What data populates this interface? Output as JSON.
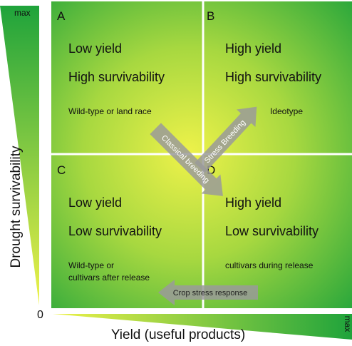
{
  "axes": {
    "y_label": "Drought survivability",
    "y_max": "max",
    "origin": "0",
    "x_label": "Yield (useful products)",
    "x_max": "max"
  },
  "quadrants": [
    {
      "letter": "A",
      "yield": "Low yield",
      "survivability": "High survivability",
      "lines": [
        "Wild-type or land race"
      ]
    },
    {
      "letter": "B",
      "yield": "High yield",
      "survivability": "High survivability",
      "lines": [
        "Ideotype"
      ]
    },
    {
      "letter": "C",
      "yield": "Low yield",
      "survivability": "Low survivability",
      "lines": [
        "Wild-type or",
        "cultivars after release"
      ]
    },
    {
      "letter": "D",
      "yield": "High yield",
      "survivability": "Low survivability",
      "lines": [
        "cultivars during release"
      ]
    }
  ],
  "arrows": {
    "classical": "Classical breeding",
    "stress": "Stress Breeding",
    "response": "Crop stress response"
  }
}
